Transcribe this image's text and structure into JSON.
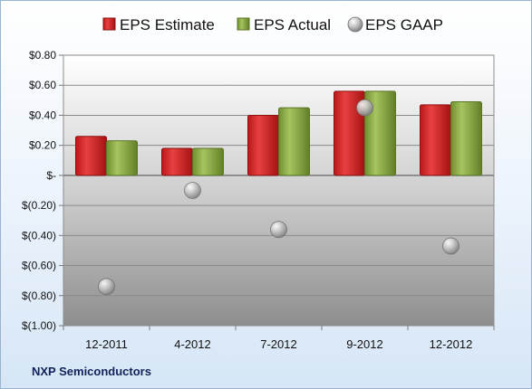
{
  "company": "NXP Semiconductors",
  "chart_data": {
    "type": "bar",
    "categories": [
      "12-2011",
      "4-2012",
      "7-2012",
      "9-2012",
      "12-2012"
    ],
    "series": [
      {
        "name": "EPS Estimate",
        "kind": "bar",
        "color": "#d42a2a",
        "values": [
          0.26,
          0.18,
          0.4,
          0.56,
          0.47
        ]
      },
      {
        "name": "EPS Actual",
        "kind": "bar",
        "color": "#8bab47",
        "values": [
          0.23,
          0.18,
          0.45,
          0.56,
          0.49
        ]
      },
      {
        "name": "EPS GAAP",
        "kind": "scatter",
        "color": "#a9a9a9",
        "values": [
          -0.74,
          -0.1,
          -0.36,
          0.45,
          -0.47
        ]
      }
    ],
    "ylim": [
      -1.0,
      0.8
    ],
    "yticks": [
      0.8,
      0.6,
      0.4,
      0.2,
      0,
      -0.2,
      -0.4,
      -0.6,
      -0.8,
      -1.0
    ],
    "ytick_labels": [
      "$0.80",
      "$0.60",
      "$0.40",
      "$0.20",
      "$-",
      "$(0.20)",
      "$(0.40)",
      "$(0.60)",
      "$(0.80)",
      "$(1.00)"
    ],
    "legend_position": "top",
    "grid": true
  }
}
